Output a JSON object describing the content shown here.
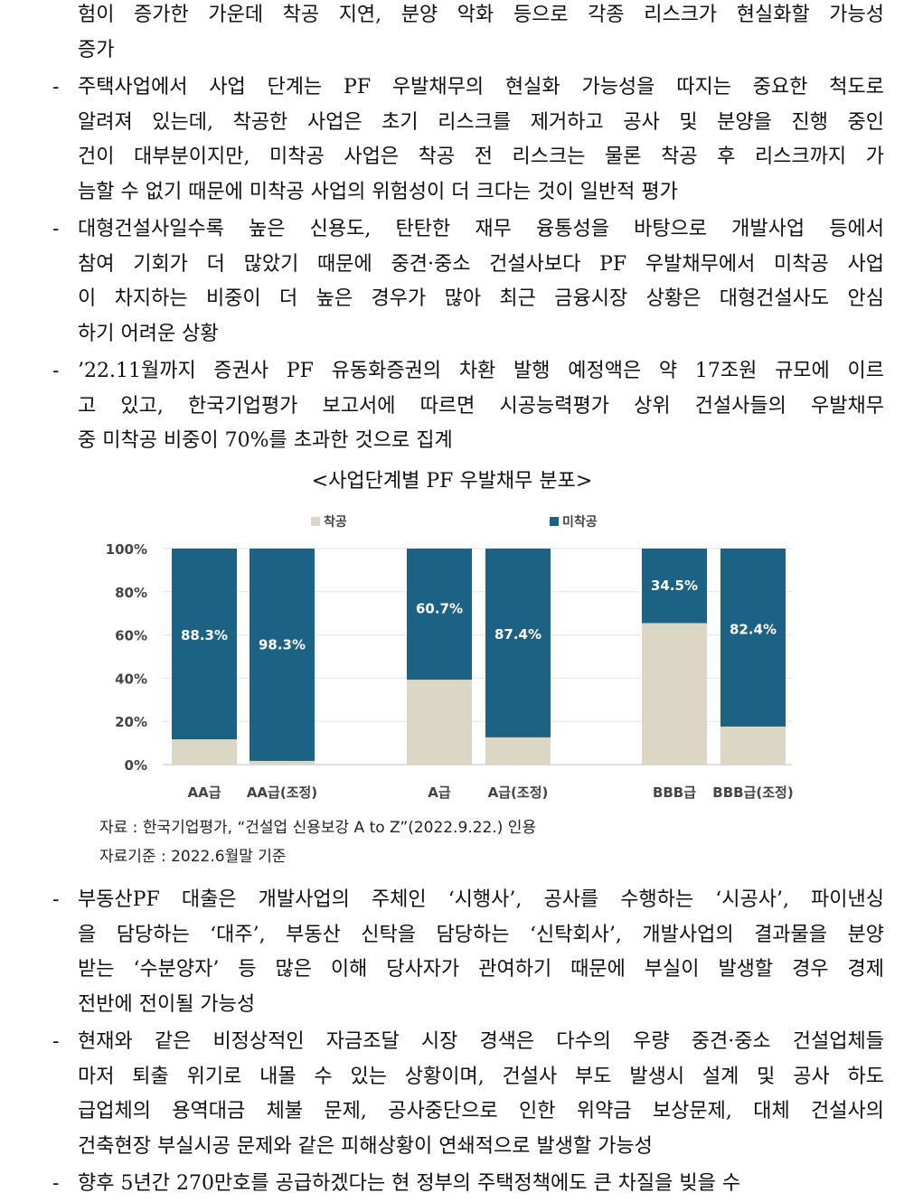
{
  "paragraphs": [
    {
      "dash": "",
      "lines": [
        "험이 증가한 가운데 착공 지연, 분양 악화 등으로 각종 리스크가 현실화할 가능성",
        "증가"
      ]
    },
    {
      "dash": "-",
      "lines": [
        "주택사업에서 사업 단계는 PF 우발채무의 현실화 가능성을 따지는 중요한 척도로",
        "알려져 있는데, 착공한 사업은 초기 리스크를 제거하고 공사 및 분양을 진행 중인",
        "건이 대부분이지만, 미착공 사업은 착공 전 리스크는 물론 착공 후 리스크까지 가",
        "늠할 수 없기 때문에 미착공 사업의 위험성이 더 크다는 것이 일반적 평가"
      ]
    },
    {
      "dash": "-",
      "lines": [
        "대형건설사일수록 높은 신용도, 탄탄한 재무 융통성을 바탕으로 개발사업 등에서",
        "참여 기회가 더 많았기 때문에 중견·중소 건설사보다 PF 우발채무에서 미착공 사업",
        "이 차지하는 비중이 더 높은 경우가 많아 최근 금융시장 상황은 대형건설사도 안심",
        "하기 어려운 상황"
      ]
    },
    {
      "dash": "-",
      "lines": [
        "’22.11월까지 증권사 PF 유동화증권의 차환 발행 예정액은 약 17조원 규모에 이르",
        "고 있고, 한국기업평가 보고서에 따르면 시공능력평가 상위 건설사들의 우발채무",
        "중 미착공 비중이 70%를 초과한 것으로 집계"
      ]
    }
  ],
  "chart_caption": "<사업단계별 PF 우발채무 분포>",
  "chart_data": {
    "type": "bar",
    "stacked": true,
    "categories": [
      "AA급",
      "AA급(조정)",
      "A급",
      "A급(조정)",
      "BBB급",
      "BBB급(조정)"
    ],
    "series": [
      {
        "name": "착공",
        "color": "#dcd7c5",
        "values": [
          11.7,
          1.7,
          39.3,
          12.6,
          65.5,
          17.6
        ]
      },
      {
        "name": "미착공",
        "color": "#1b6284",
        "values": [
          88.3,
          98.3,
          60.7,
          87.4,
          34.5,
          82.4
        ]
      }
    ],
    "data_labels": [
      "88.3%",
      "98.3%",
      "60.7%",
      "87.4%",
      "34.5%",
      "82.4%"
    ],
    "y_ticks": [
      "0%",
      "20%",
      "40%",
      "60%",
      "80%",
      "100%"
    ],
    "ylim": [
      0,
      100
    ],
    "legend": "top-center",
    "grid": true
  },
  "source_lines": [
    "자료 : 한국기업평가, “건설업 신용보강 A to Z”(2022.9.22.) 인용",
    "자료기준 : 2022.6월말 기준"
  ],
  "paragraphs_after": [
    {
      "dash": "-",
      "lines": [
        "부동산PF 대출은 개발사업의 주체인 ‘시행사’, 공사를 수행하는 ‘시공사’, 파이낸싱",
        "을 담당하는 ‘대주’, 부동산 신탁을 담당하는 ‘신탁회사’, 개발사업의 결과물을 분양",
        "받는 ‘수분양자’ 등 많은 이해 당사자가 관여하기 때문에 부실이 발생할 경우 경제",
        "전반에 전이될 가능성"
      ]
    },
    {
      "dash": "-",
      "lines": [
        "현재와 같은 비정상적인 자금조달 시장 경색은 다수의 우량 중견·중소 건설업체들",
        "마저 퇴출 위기로 내몰 수 있는 상황이며, 건설사 부도 발생시 설계 및 공사 하도",
        "급업체의 용역대금 체불 문제, 공사중단으로 인한 위약금 보상문제, 대체 건설사의",
        "건축현장 부실시공 문제와 같은 피해상황이 연쇄적으로 발생할 가능성"
      ]
    },
    {
      "dash": "-",
      "lines": [
        "향후 5년간 270만호를 공급하겠다는 현 정부의 주택정책에도 큰 차질을 빚을 수"
      ]
    }
  ]
}
